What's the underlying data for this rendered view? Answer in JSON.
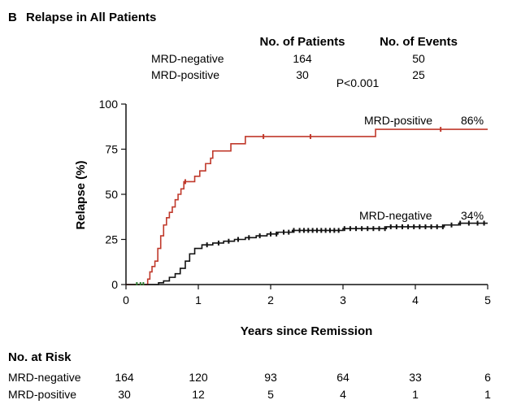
{
  "panel": {
    "letter": "B",
    "title": "Relapse in All Patients"
  },
  "summary_table": {
    "col_patients": "No. of Patients",
    "col_events": "No. of Events",
    "rows": [
      {
        "label": "MRD-negative",
        "patients": "164",
        "events": "50"
      },
      {
        "label": "MRD-positive",
        "patients": "30",
        "events": "25"
      }
    ],
    "pvalue": "P<0.001"
  },
  "chart_data": {
    "type": "line",
    "xlabel": "Years since Remission",
    "ylabel": "Relapse (%)",
    "xlim": [
      0,
      5
    ],
    "ylim": [
      0,
      100
    ],
    "xticks": [
      "0",
      "1",
      "2",
      "3",
      "4",
      "5"
    ],
    "yticks": [
      "0",
      "25",
      "50",
      "75",
      "100"
    ],
    "grid": false,
    "series": [
      {
        "name": "MRD-positive",
        "end_label": "86%",
        "color": "#c0392b",
        "step": true,
        "points": [
          [
            0,
            0
          ],
          [
            0.28,
            0
          ],
          [
            0.3,
            3
          ],
          [
            0.33,
            7
          ],
          [
            0.36,
            10
          ],
          [
            0.4,
            13
          ],
          [
            0.44,
            20
          ],
          [
            0.48,
            27
          ],
          [
            0.52,
            33
          ],
          [
            0.56,
            37
          ],
          [
            0.6,
            40
          ],
          [
            0.64,
            43
          ],
          [
            0.68,
            47
          ],
          [
            0.72,
            50
          ],
          [
            0.76,
            53
          ],
          [
            0.8,
            57
          ],
          [
            0.95,
            60
          ],
          [
            1.02,
            63
          ],
          [
            1.1,
            67
          ],
          [
            1.17,
            70
          ],
          [
            1.2,
            74
          ],
          [
            1.45,
            78
          ],
          [
            1.65,
            82
          ],
          [
            3.45,
            86
          ],
          [
            5.0,
            86
          ]
        ],
        "censor_x": [
          0.82,
          1.9,
          2.55,
          4.35
        ]
      },
      {
        "name": "MRD-negative",
        "end_label": "34%",
        "color": "#111111",
        "step": true,
        "points": [
          [
            0,
            0
          ],
          [
            0.35,
            0
          ],
          [
            0.45,
            1
          ],
          [
            0.52,
            2
          ],
          [
            0.6,
            4
          ],
          [
            0.68,
            6
          ],
          [
            0.75,
            9
          ],
          [
            0.82,
            13
          ],
          [
            0.88,
            17
          ],
          [
            0.95,
            20
          ],
          [
            1.05,
            22
          ],
          [
            1.2,
            23
          ],
          [
            1.35,
            24
          ],
          [
            1.5,
            25
          ],
          [
            1.65,
            26
          ],
          [
            1.8,
            27
          ],
          [
            1.95,
            28
          ],
          [
            2.1,
            29
          ],
          [
            2.3,
            30
          ],
          [
            2.5,
            30
          ],
          [
            2.8,
            30
          ],
          [
            3.0,
            31
          ],
          [
            3.3,
            31
          ],
          [
            3.6,
            32
          ],
          [
            3.9,
            32
          ],
          [
            4.2,
            32
          ],
          [
            4.4,
            33
          ],
          [
            4.6,
            34
          ],
          [
            5.0,
            34
          ]
        ],
        "censor_x": [
          1.12,
          1.28,
          1.42,
          1.55,
          1.7,
          1.85,
          2.0,
          2.08,
          2.18,
          2.25,
          2.32,
          2.4,
          2.46,
          2.52,
          2.58,
          2.64,
          2.7,
          2.76,
          2.82,
          2.88,
          2.94,
          3.02,
          3.1,
          3.18,
          3.26,
          3.34,
          3.42,
          3.5,
          3.58,
          3.66,
          3.74,
          3.82,
          3.9,
          3.98,
          4.06,
          4.14,
          4.22,
          4.3,
          4.38,
          4.5,
          4.62,
          4.74,
          4.86,
          4.95
        ]
      }
    ],
    "censor_color": "#2e7d32"
  },
  "risk_table": {
    "title": "No. at Risk",
    "rows": [
      {
        "label": "MRD-negative",
        "values": [
          "164",
          "120",
          "93",
          "64",
          "33",
          "6"
        ]
      },
      {
        "label": "MRD-positive",
        "values": [
          "30",
          "12",
          "5",
          "4",
          "1",
          "1"
        ]
      }
    ]
  }
}
